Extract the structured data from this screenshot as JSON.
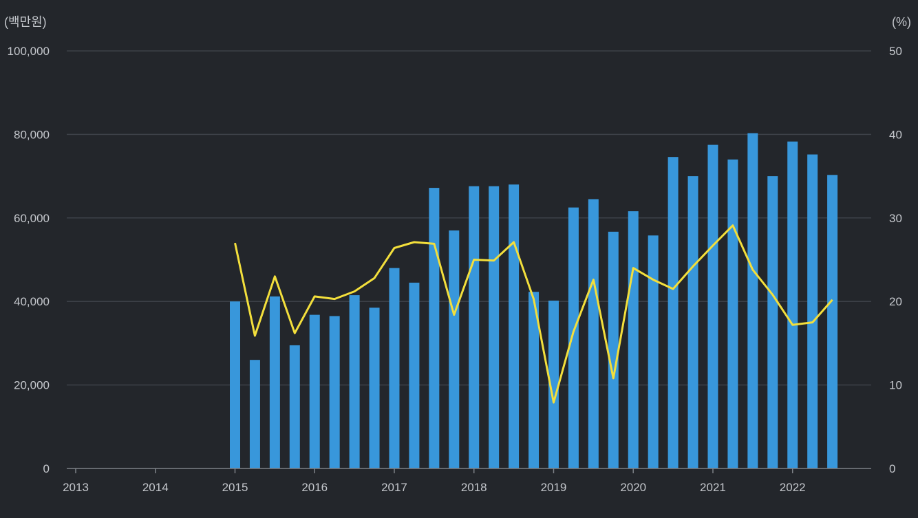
{
  "chart_data": {
    "type": "bar+line",
    "left_axis_unit": "(백만원)",
    "right_axis_unit": "(%)",
    "y_left_range": [
      0,
      100000
    ],
    "y_left_ticks": [
      "0",
      "20,000",
      "40,000",
      "60,000",
      "80,000",
      "100,000"
    ],
    "y_left_tick_values": [
      0,
      20000,
      40000,
      60000,
      80000,
      100000
    ],
    "y_right_range": [
      0,
      50
    ],
    "y_right_ticks": [
      "0",
      "10",
      "20",
      "30",
      "40",
      "50"
    ],
    "y_right_tick_values": [
      0,
      10,
      20,
      30,
      40,
      50
    ],
    "x_range": [
      2013,
      2022.875
    ],
    "x_ticks": [
      "2013",
      "2014",
      "2015",
      "2016",
      "2017",
      "2018",
      "2019",
      "2020",
      "2021",
      "2022"
    ],
    "x_tick_values": [
      2013,
      2014,
      2015,
      2016,
      2017,
      2018,
      2019,
      2020,
      2021,
      2022
    ],
    "grid": true,
    "legend": "none",
    "periods": [
      "2015Q1",
      "2015Q2",
      "2015Q3",
      "2015Q4",
      "2016Q1",
      "2016Q2",
      "2016Q3",
      "2016Q4",
      "2017Q1",
      "2017Q2",
      "2017Q3",
      "2017Q4",
      "2018Q1",
      "2018Q2",
      "2018Q3",
      "2018Q4",
      "2019Q1",
      "2019Q2",
      "2019Q3",
      "2019Q4",
      "2020Q1",
      "2020Q2",
      "2020Q3",
      "2020Q4",
      "2021Q1",
      "2021Q2",
      "2021Q3",
      "2021Q4",
      "2022Q1",
      "2022Q2",
      "2022Q3"
    ],
    "x": [
      2015.0,
      2015.25,
      2015.5,
      2015.75,
      2016.0,
      2016.25,
      2016.5,
      2016.75,
      2017.0,
      2017.25,
      2017.5,
      2017.75,
      2018.0,
      2018.25,
      2018.5,
      2018.75,
      2019.0,
      2019.25,
      2019.5,
      2019.75,
      2020.0,
      2020.25,
      2020.5,
      2020.75,
      2021.0,
      2021.25,
      2021.5,
      2021.75,
      2022.0,
      2022.25,
      2022.5
    ],
    "series": [
      {
        "type": "bar",
        "axis": "left",
        "color": "#3897db",
        "values": [
          40000,
          26000,
          41200,
          29500,
          36800,
          36500,
          41500,
          38500,
          48000,
          44500,
          67200,
          57000,
          67600,
          67600,
          68000,
          42300,
          40200,
          62500,
          64500,
          56700,
          61600,
          55800,
          74600,
          70000,
          77500,
          74000,
          80300,
          70000,
          78300,
          75200,
          70300
        ]
      },
      {
        "type": "line",
        "axis": "right",
        "color": "#f3df3c",
        "values": [
          27.0,
          15.9,
          23.0,
          16.2,
          20.6,
          20.3,
          21.2,
          22.8,
          26.4,
          27.1,
          26.9,
          18.4,
          25.0,
          24.9,
          27.1,
          20.3,
          7.9,
          16.4,
          22.6,
          10.8,
          24.0,
          22.6,
          21.5,
          24.2,
          26.7,
          29.1,
          23.8,
          20.8,
          17.2,
          17.5,
          20.2
        ]
      }
    ]
  },
  "style": {
    "background": "#23262b",
    "grid_color": "#3d4148",
    "axis_color": "#7d8187",
    "text_color": "#c4c7cc"
  }
}
